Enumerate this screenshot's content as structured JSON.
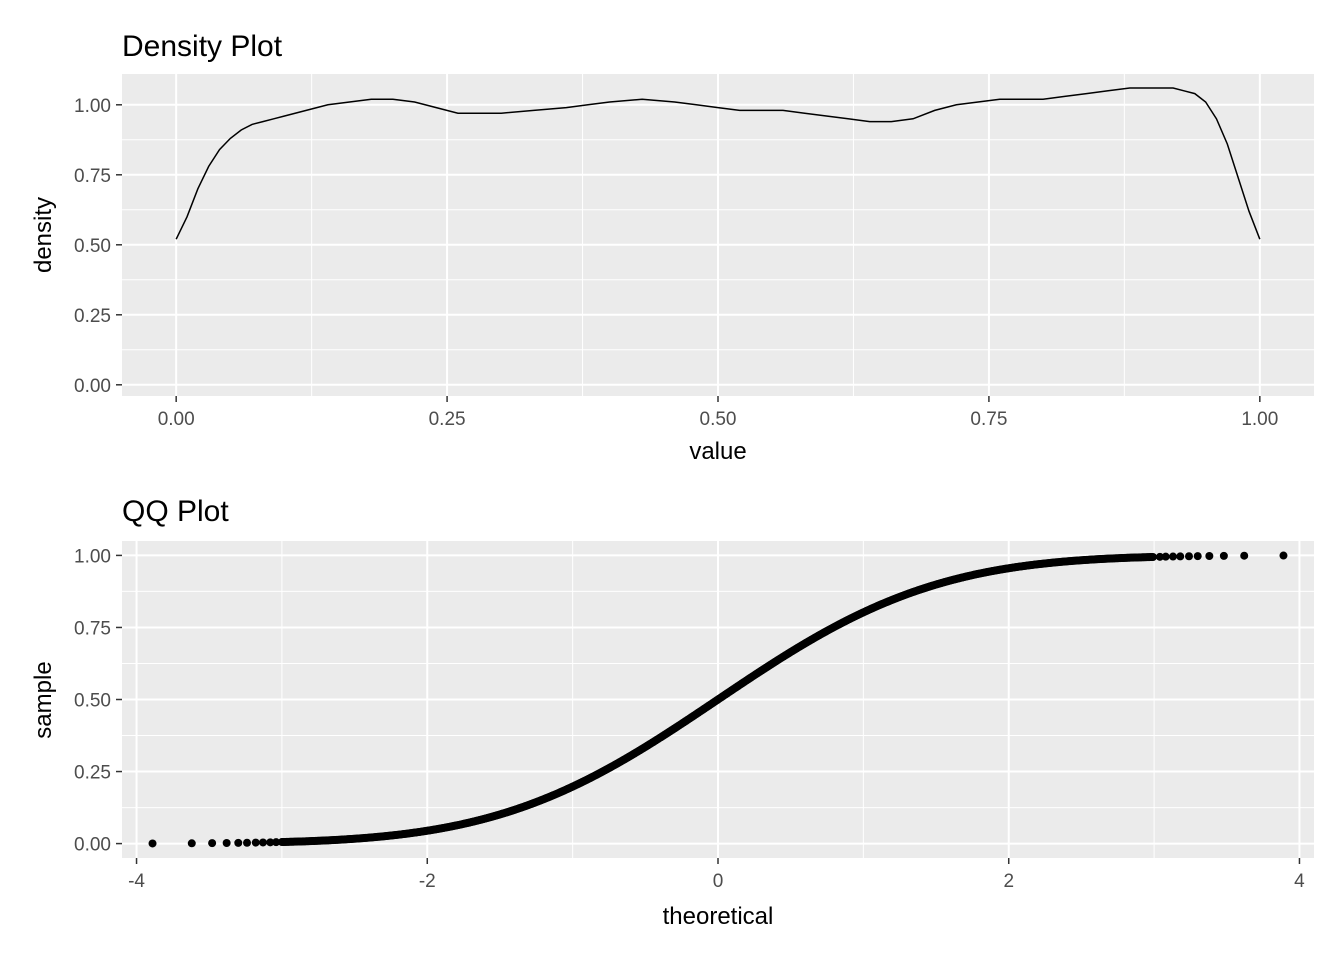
{
  "chart_data": [
    {
      "type": "line",
      "title": "Density Plot",
      "xlabel": "value",
      "ylabel": "density",
      "xlim": [
        -0.05,
        1.05
      ],
      "ylim": [
        -0.04,
        1.11
      ],
      "xticks": [
        0,
        0.25,
        0.5,
        0.75,
        1
      ],
      "xtick_labels": [
        "0.00",
        "0.25",
        "0.50",
        "0.75",
        "1.00"
      ],
      "yticks": [
        0,
        0.25,
        0.5,
        0.75,
        1
      ],
      "ytick_labels": [
        "0.00",
        "0.25",
        "0.50",
        "0.75",
        "1.00"
      ],
      "grid": true,
      "series": [
        {
          "x": [
            0,
            0.01,
            0.02,
            0.03,
            0.04,
            0.05,
            0.06,
            0.07,
            0.08,
            0.09,
            0.1,
            0.12,
            0.14,
            0.16,
            0.18,
            0.2,
            0.22,
            0.24,
            0.26,
            0.28,
            0.3,
            0.33,
            0.36,
            0.38,
            0.4,
            0.43,
            0.46,
            0.48,
            0.5,
            0.52,
            0.54,
            0.56,
            0.58,
            0.6,
            0.62,
            0.64,
            0.66,
            0.68,
            0.7,
            0.72,
            0.74,
            0.76,
            0.78,
            0.8,
            0.82,
            0.84,
            0.86,
            0.88,
            0.9,
            0.92,
            0.93,
            0.94,
            0.95,
            0.96,
            0.97,
            0.98,
            0.99,
            1.0
          ],
          "y": [
            0.52,
            0.6,
            0.7,
            0.78,
            0.84,
            0.88,
            0.91,
            0.93,
            0.94,
            0.95,
            0.96,
            0.98,
            1.0,
            1.01,
            1.02,
            1.02,
            1.01,
            0.99,
            0.97,
            0.97,
            0.97,
            0.98,
            0.99,
            1.0,
            1.01,
            1.02,
            1.01,
            1.0,
            0.99,
            0.98,
            0.98,
            0.98,
            0.97,
            0.96,
            0.95,
            0.94,
            0.94,
            0.95,
            0.98,
            1.0,
            1.01,
            1.02,
            1.02,
            1.02,
            1.03,
            1.04,
            1.05,
            1.06,
            1.06,
            1.06,
            1.05,
            1.04,
            1.01,
            0.95,
            0.86,
            0.74,
            0.62,
            0.52
          ]
        }
      ]
    },
    {
      "type": "scatter",
      "title": "QQ Plot",
      "xlabel": "theoretical",
      "ylabel": "sample",
      "xlim": [
        -4.1,
        4.1
      ],
      "ylim": [
        -0.05,
        1.05
      ],
      "xticks": [
        -4,
        -2,
        0,
        2,
        4
      ],
      "xtick_labels": [
        "-4",
        "-2",
        "0",
        "2",
        "4"
      ],
      "yticks": [
        0,
        0.25,
        0.5,
        0.75,
        1
      ],
      "ytick_labels": [
        "0.00",
        "0.25",
        "0.50",
        "0.75",
        "1.00"
      ],
      "grid": true,
      "points_x": [
        -3.89,
        -3.62,
        -3.48,
        -3.38,
        -3.3,
        -3.24,
        -3.18,
        -3.13,
        -3.08,
        -3.04
      ],
      "points_x_upper": [
        3.04,
        3.08,
        3.13,
        3.18,
        3.24,
        3.3,
        3.38,
        3.48,
        3.62,
        3.89
      ],
      "curve": "normal-cdf",
      "curve_scale": 0.85
    }
  ]
}
